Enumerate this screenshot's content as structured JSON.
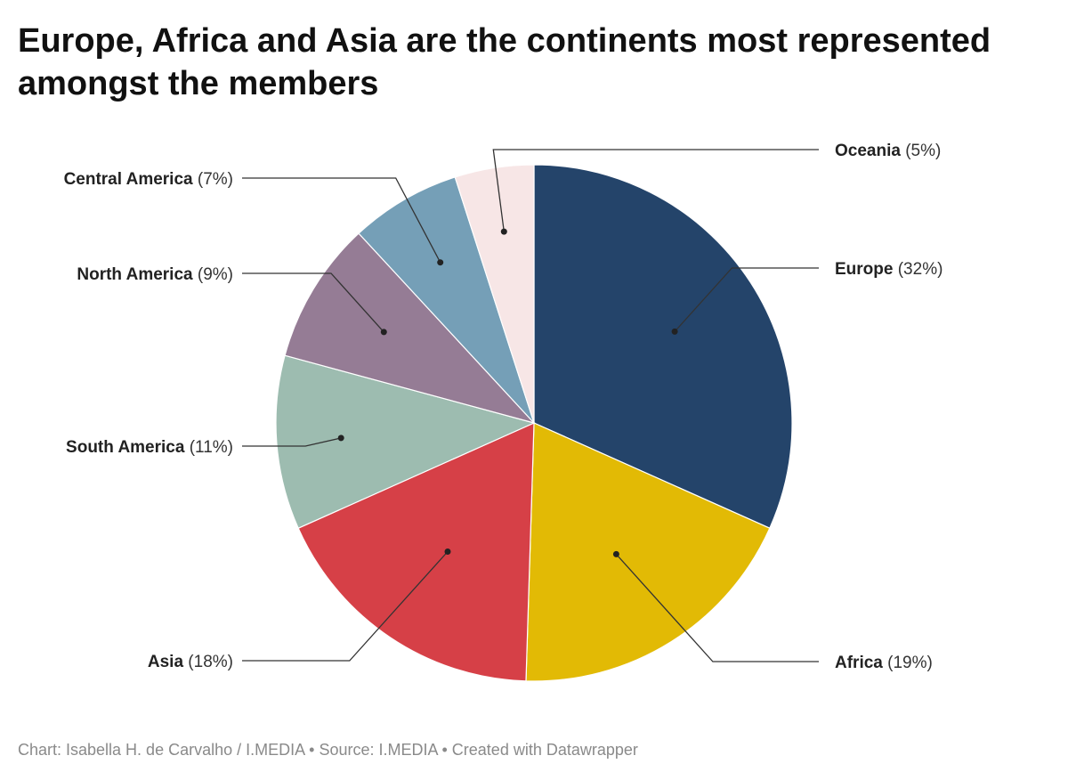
{
  "title": "Europe, Africa and Asia are the continents most represented amongst the members",
  "footer": "Chart: Isabella H. de Carvalho / I.MEDIA • Source: I.MEDIA • Created with Datawrapper",
  "chart_data": {
    "type": "pie",
    "title": "Europe, Africa and Asia are the continents most represented amongst the members",
    "slices": [
      {
        "label": "Europe",
        "value": 32,
        "display": "(32%)",
        "color": "#24446a",
        "side": "right"
      },
      {
        "label": "Africa",
        "value": 19,
        "display": "(19%)",
        "color": "#e2ba05",
        "side": "right"
      },
      {
        "label": "Asia",
        "value": 18,
        "display": "(18%)",
        "color": "#d64047",
        "side": "left"
      },
      {
        "label": "South America",
        "value": 11,
        "display": "(11%)",
        "color": "#9dbcb0",
        "side": "left"
      },
      {
        "label": "North America",
        "value": 9,
        "display": "(9%)",
        "color": "#957c95",
        "side": "left"
      },
      {
        "label": "Central America",
        "value": 7,
        "display": "(7%)",
        "color": "#759fb7",
        "side": "left"
      },
      {
        "label": "Oceania",
        "value": 5,
        "display": "(5%)",
        "color": "#f7e6e6",
        "side": "right"
      }
    ],
    "start_angle_deg": 0,
    "direction": "clockwise"
  }
}
